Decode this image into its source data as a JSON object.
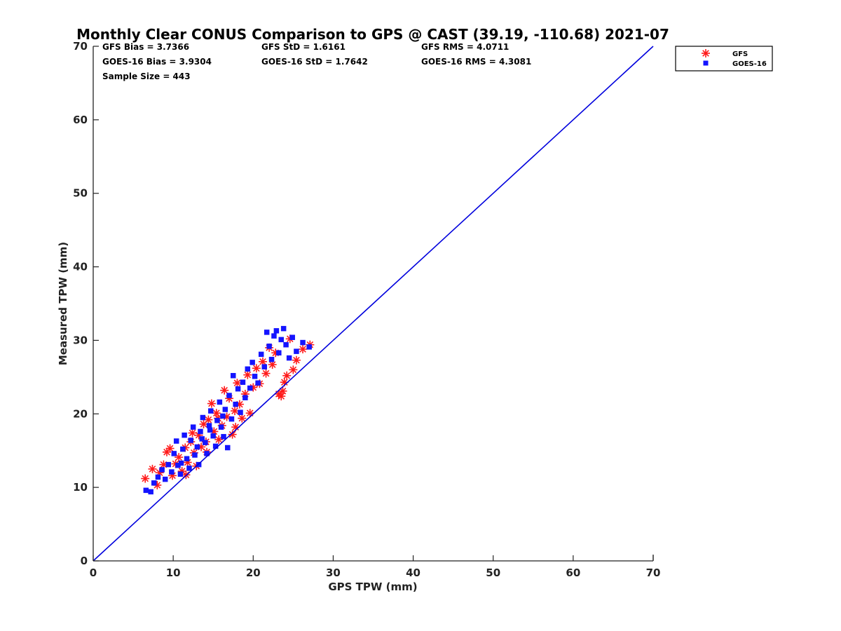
{
  "chart_data": {
    "type": "scatter",
    "title": "Monthly Clear CONUS Comparison to GPS @ CAST (39.19, -110.68) 2021-07",
    "xlabel": "GPS TPW (mm)",
    "ylabel": "Measured TPW (mm)",
    "xlim": [
      0,
      70
    ],
    "ylim": [
      0,
      70
    ],
    "x_ticks": [
      "0",
      "10",
      "20",
      "30",
      "40",
      "50",
      "60",
      "70"
    ],
    "y_ticks": [
      "0",
      "10",
      "20",
      "30",
      "40",
      "50",
      "60",
      "70"
    ],
    "grid": false,
    "legend_position": "top-right",
    "reference_line": {
      "color": "#0000dd",
      "points": [
        [
          0,
          0
        ],
        [
          70,
          70
        ]
      ]
    },
    "stats": {
      "gfs_bias": "GFS Bias = 3.7366",
      "gfs_std": "GFS StD = 1.6161",
      "gfs_rms": "GFS RMS = 4.0711",
      "goes_bias": "GOES-16 Bias = 3.9304",
      "goes_std": "GOES-16 StD = 1.7642",
      "goes_rms": "GOES-16 RMS = 4.3081",
      "sample_size": "Sample Size = 443"
    },
    "series": [
      {
        "name": "GFS",
        "marker": "asterisk",
        "color": "#ff1a1a",
        "points": [
          [
            6.5,
            11.2
          ],
          [
            7.4,
            12.5
          ],
          [
            8.0,
            10.3
          ],
          [
            8.3,
            12.0
          ],
          [
            8.8,
            13.1
          ],
          [
            9.2,
            14.8
          ],
          [
            9.6,
            15.3
          ],
          [
            9.9,
            11.6
          ],
          [
            10.3,
            13.2
          ],
          [
            10.7,
            14.1
          ],
          [
            11.1,
            12.2
          ],
          [
            11.5,
            15.4
          ],
          [
            11.8,
            13.4
          ],
          [
            12.2,
            16.2
          ],
          [
            12.6,
            14.7
          ],
          [
            12.9,
            12.9
          ],
          [
            13.2,
            17.1
          ],
          [
            13.5,
            15.5
          ],
          [
            13.8,
            18.6
          ],
          [
            14.1,
            16.2
          ],
          [
            14.4,
            19.2
          ],
          [
            14.8,
            21.4
          ],
          [
            15.1,
            17.6
          ],
          [
            15.4,
            20.1
          ],
          [
            15.7,
            16.5
          ],
          [
            16.1,
            18.4
          ],
          [
            16.4,
            23.2
          ],
          [
            16.7,
            19.6
          ],
          [
            17.0,
            22.1
          ],
          [
            17.4,
            17.2
          ],
          [
            17.7,
            20.4
          ],
          [
            18.0,
            24.2
          ],
          [
            18.3,
            21.3
          ],
          [
            18.6,
            19.4
          ],
          [
            19.0,
            22.7
          ],
          [
            19.3,
            25.3
          ],
          [
            19.6,
            20.1
          ],
          [
            20.0,
            23.6
          ],
          [
            20.4,
            26.2
          ],
          [
            20.8,
            24.1
          ],
          [
            21.2,
            27.1
          ],
          [
            21.6,
            25.5
          ],
          [
            22.0,
            29.0
          ],
          [
            22.4,
            26.7
          ],
          [
            22.8,
            28.3
          ],
          [
            23.2,
            22.7
          ],
          [
            23.5,
            22.4
          ],
          [
            23.7,
            23.1
          ],
          [
            23.9,
            24.3
          ],
          [
            24.2,
            25.2
          ],
          [
            24.6,
            30.2
          ],
          [
            25.0,
            26.0
          ],
          [
            25.4,
            27.3
          ],
          [
            26.2,
            28.8
          ],
          [
            27.1,
            29.4
          ],
          [
            11.6,
            11.7
          ],
          [
            14.2,
            14.8
          ],
          [
            17.8,
            18.2
          ],
          [
            12.4,
            17.4
          ],
          [
            15.6,
            19.4
          ]
        ]
      },
      {
        "name": "GOES-16",
        "marker": "square",
        "color": "#1414ff",
        "points": [
          [
            6.6,
            9.6
          ],
          [
            7.2,
            9.4
          ],
          [
            7.6,
            10.6
          ],
          [
            8.1,
            11.4
          ],
          [
            8.6,
            12.4
          ],
          [
            9.0,
            11.1
          ],
          [
            9.4,
            13.1
          ],
          [
            9.8,
            12.1
          ],
          [
            10.1,
            14.6
          ],
          [
            10.4,
            16.3
          ],
          [
            10.6,
            13.0
          ],
          [
            10.9,
            11.8
          ],
          [
            11.2,
            15.2
          ],
          [
            11.4,
            17.1
          ],
          [
            11.7,
            13.9
          ],
          [
            12.0,
            12.6
          ],
          [
            12.2,
            16.4
          ],
          [
            12.5,
            18.2
          ],
          [
            12.7,
            14.4
          ],
          [
            13.0,
            15.5
          ],
          [
            13.2,
            13.1
          ],
          [
            13.4,
            17.6
          ],
          [
            13.7,
            19.5
          ],
          [
            14.0,
            16.1
          ],
          [
            14.2,
            14.6
          ],
          [
            14.5,
            18.4
          ],
          [
            14.7,
            20.4
          ],
          [
            15.0,
            17.0
          ],
          [
            15.3,
            15.6
          ],
          [
            15.5,
            19.1
          ],
          [
            15.8,
            21.6
          ],
          [
            16.0,
            18.2
          ],
          [
            16.3,
            16.9
          ],
          [
            16.5,
            20.6
          ],
          [
            16.8,
            15.4
          ],
          [
            17.0,
            22.5
          ],
          [
            17.3,
            19.3
          ],
          [
            17.5,
            25.2
          ],
          [
            17.8,
            21.3
          ],
          [
            18.1,
            23.4
          ],
          [
            18.4,
            20.2
          ],
          [
            18.7,
            24.3
          ],
          [
            19.0,
            22.2
          ],
          [
            19.3,
            26.1
          ],
          [
            19.6,
            23.5
          ],
          [
            19.9,
            27.0
          ],
          [
            20.2,
            25.1
          ],
          [
            20.6,
            24.2
          ],
          [
            21.0,
            28.1
          ],
          [
            21.4,
            26.4
          ],
          [
            21.7,
            31.1
          ],
          [
            22.0,
            29.2
          ],
          [
            22.3,
            27.4
          ],
          [
            22.6,
            30.6
          ],
          [
            22.9,
            31.3
          ],
          [
            23.2,
            28.3
          ],
          [
            23.5,
            30.1
          ],
          [
            23.8,
            31.6
          ],
          [
            24.1,
            29.4
          ],
          [
            24.5,
            27.6
          ],
          [
            24.9,
            30.4
          ],
          [
            25.4,
            28.5
          ],
          [
            26.2,
            29.7
          ],
          [
            27.0,
            29.1
          ],
          [
            11.0,
            13.3
          ],
          [
            13.6,
            16.6
          ],
          [
            16.2,
            19.7
          ],
          [
            14.6,
            17.8
          ]
        ]
      }
    ]
  }
}
